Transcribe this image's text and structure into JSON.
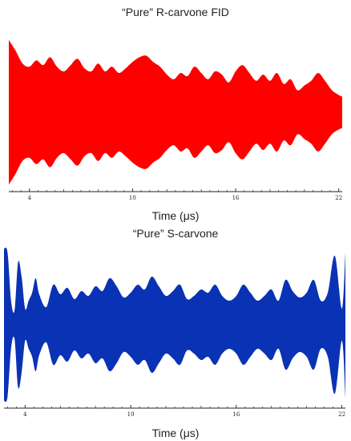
{
  "chart_data": [
    {
      "type": "area",
      "title": "“Pure” R-carvone FID",
      "xlabel": "Time (μs)",
      "ylabel": "",
      "xlim": [
        2.8,
        22.2
      ],
      "xticks": [
        4,
        10,
        16,
        22
      ],
      "minor_tick_step": 0.5,
      "grid": false,
      "legend": "none",
      "color": "#ff0000",
      "series": [
        {
          "x": [
            2.8,
            3.2,
            3.6,
            4.0,
            4.4,
            4.8,
            5.2,
            5.6,
            6.0,
            6.4,
            6.8,
            7.2,
            7.6,
            8.0,
            8.4,
            8.8,
            9.2,
            9.6,
            10.0,
            10.4,
            10.8,
            11.2,
            11.6,
            12.0,
            12.4,
            12.8,
            13.2,
            13.6,
            14.0,
            14.4,
            14.8,
            15.2,
            15.6,
            16.0,
            16.4,
            16.8,
            17.2,
            17.6,
            18.0,
            18.4,
            18.8,
            19.2,
            19.6,
            20.0,
            20.4,
            20.8,
            21.2,
            21.6,
            22.0,
            22.2
          ],
          "envelope": [
            0.92,
            0.78,
            0.62,
            0.58,
            0.66,
            0.6,
            0.7,
            0.58,
            0.52,
            0.6,
            0.68,
            0.56,
            0.52,
            0.62,
            0.52,
            0.58,
            0.5,
            0.56,
            0.64,
            0.7,
            0.72,
            0.64,
            0.58,
            0.48,
            0.42,
            0.5,
            0.46,
            0.58,
            0.5,
            0.42,
            0.52,
            0.48,
            0.38,
            0.52,
            0.6,
            0.5,
            0.4,
            0.48,
            0.4,
            0.5,
            0.36,
            0.42,
            0.28,
            0.34,
            0.4,
            0.5,
            0.4,
            0.28,
            0.22,
            0.2
          ]
        }
      ]
    },
    {
      "type": "area",
      "title": "“Pure” S-carvone",
      "xlabel": "Time (μs)",
      "ylabel": "",
      "xlim": [
        2.8,
        22.2
      ],
      "xticks": [
        4,
        10,
        16,
        22
      ],
      "minor_tick_step": 0.5,
      "grid": false,
      "legend": "none",
      "color": "#0a32b4",
      "series": [
        {
          "x": [
            2.8,
            3.0,
            3.2,
            3.4,
            3.6,
            3.8,
            4.0,
            4.2,
            4.4,
            4.6,
            4.8,
            5.2,
            5.6,
            6.0,
            6.4,
            6.8,
            7.2,
            7.6,
            8.0,
            8.4,
            8.8,
            9.2,
            9.6,
            10.0,
            10.4,
            10.8,
            11.2,
            11.6,
            12.0,
            12.4,
            12.8,
            13.2,
            13.6,
            14.0,
            14.4,
            14.8,
            15.2,
            15.6,
            16.0,
            16.4,
            16.8,
            17.2,
            17.6,
            18.0,
            18.4,
            18.8,
            19.2,
            19.6,
            20.0,
            20.4,
            20.8,
            21.2,
            21.6,
            22.0,
            22.2
          ],
          "envelope": [
            0.95,
            0.9,
            0.3,
            0.18,
            0.78,
            0.6,
            0.2,
            0.3,
            0.4,
            0.58,
            0.38,
            0.22,
            0.5,
            0.38,
            0.46,
            0.32,
            0.42,
            0.36,
            0.48,
            0.42,
            0.58,
            0.48,
            0.34,
            0.4,
            0.5,
            0.44,
            0.6,
            0.48,
            0.36,
            0.42,
            0.5,
            0.32,
            0.36,
            0.44,
            0.4,
            0.5,
            0.36,
            0.3,
            0.36,
            0.5,
            0.4,
            0.3,
            0.36,
            0.44,
            0.3,
            0.56,
            0.42,
            0.34,
            0.4,
            0.56,
            0.3,
            0.4,
            0.86,
            0.2,
            0.9
          ]
        }
      ]
    }
  ]
}
